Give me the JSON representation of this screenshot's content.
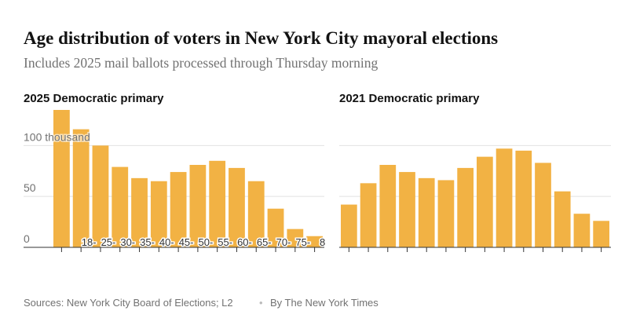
{
  "title": "Age distribution of voters in New York City mayoral elections",
  "subtitle": "Includes 2025 mail ballots processed through Thursday morning",
  "source": "Sources: New York City Board of Elections; L2",
  "credit": "By The New York Times",
  "chart_data": [
    {
      "type": "bar",
      "title": "2025 Democratic primary",
      "categories": [
        null,
        "18-",
        "25-",
        "30-",
        "35-",
        "40-",
        "45-",
        "50-",
        "55-",
        "60-",
        "65-",
        "70-",
        "75-",
        "8"
      ],
      "values": [
        135,
        116,
        100,
        79,
        68,
        65,
        74,
        81,
        85,
        78,
        65,
        38,
        18,
        11
      ],
      "color": "#f2b244",
      "ylim": [
        0,
        135
      ],
      "yticks": [
        0,
        50,
        {
          "value": 100,
          "label": "100 thousand"
        }
      ],
      "grid": true
    },
    {
      "type": "bar",
      "title": "2021 Democratic primary",
      "categories": [
        null,
        null,
        null,
        null,
        null,
        null,
        null,
        null,
        null,
        null,
        null,
        null,
        null,
        null
      ],
      "values": [
        42,
        63,
        81,
        74,
        68,
        66,
        78,
        89,
        97,
        95,
        83,
        55,
        33,
        26
      ],
      "color": "#f2b244",
      "ylim": [
        0,
        135
      ],
      "grid": true
    }
  ]
}
